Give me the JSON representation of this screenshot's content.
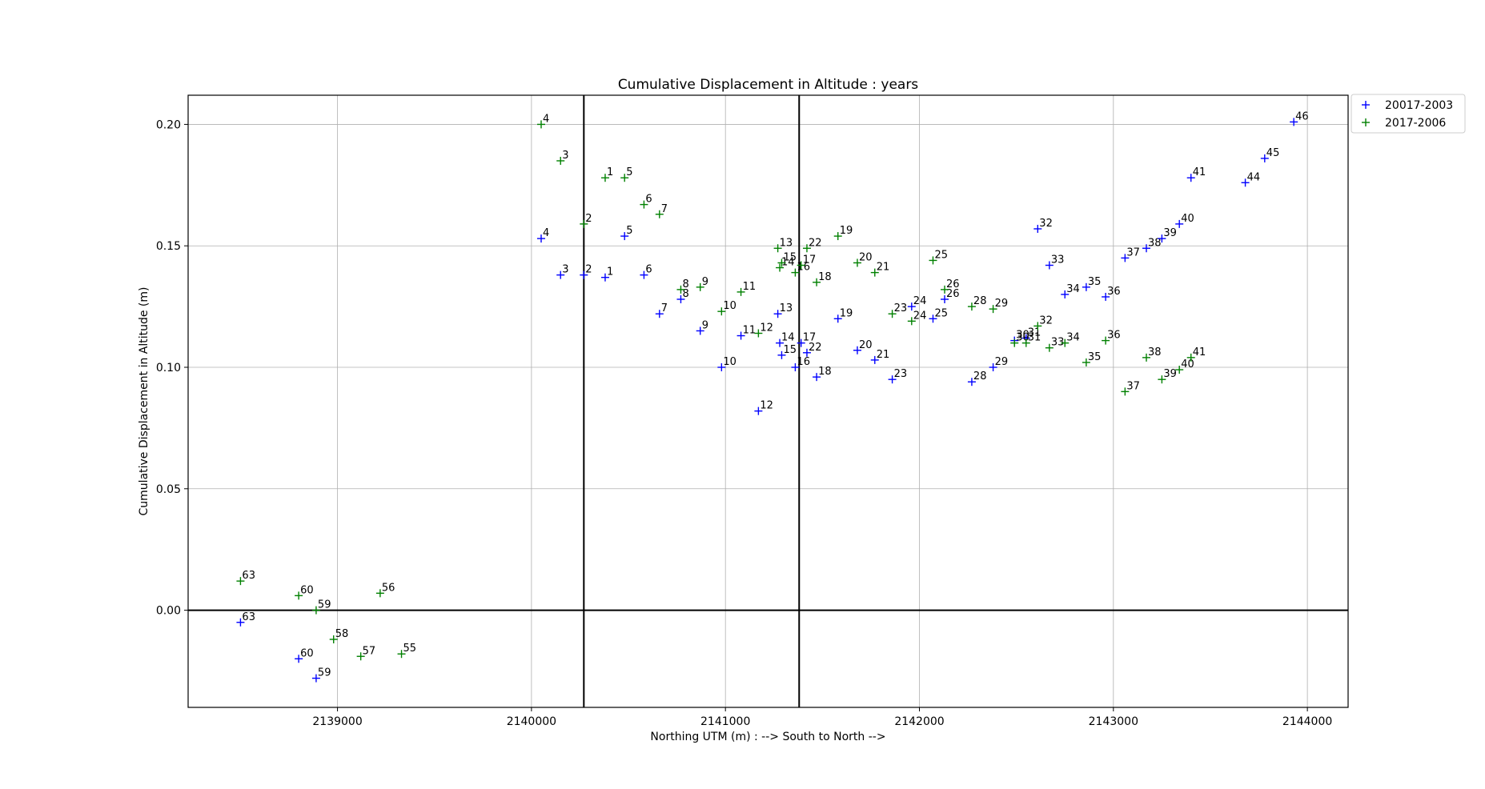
{
  "chart_data": {
    "type": "scatter",
    "title": "Cumulative Displacement in Altitude : years",
    "xlabel": "Northing UTM (m) : --> South to North -->",
    "ylabel": "Cumulative Displacement in Altitude (m)",
    "xlim": [
      2138230,
      2144210
    ],
    "ylim": [
      -0.04,
      0.212
    ],
    "xticks": [
      2139000,
      2140000,
      2141000,
      2142000,
      2143000,
      2144000
    ],
    "xtick_labels": [
      "2139000",
      "2140000",
      "2141000",
      "2142000",
      "2143000",
      "2144000"
    ],
    "yticks": [
      0.0,
      0.05,
      0.1,
      0.15,
      0.2
    ],
    "ytick_labels": [
      "0.00",
      "0.05",
      "0.10",
      "0.15",
      "0.20"
    ],
    "grid": true,
    "legend_position": "top-right-outside",
    "reference_lines": {
      "horizontal_y": [
        0.0
      ],
      "vertical_x": [
        2140270,
        2141380
      ]
    },
    "series": [
      {
        "name": "20017-2003",
        "color": "#0000ff",
        "marker": "+",
        "points": [
          {
            "label": "63",
            "x": 2138500,
            "y": -0.005
          },
          {
            "label": "60",
            "x": 2138800,
            "y": -0.02
          },
          {
            "label": "59",
            "x": 2138890,
            "y": -0.028
          },
          {
            "label": "4",
            "x": 2140050,
            "y": 0.153
          },
          {
            "label": "3",
            "x": 2140150,
            "y": 0.138
          },
          {
            "label": "2",
            "x": 2140270,
            "y": 0.138
          },
          {
            "label": "1",
            "x": 2140380,
            "y": 0.137
          },
          {
            "label": "5",
            "x": 2140480,
            "y": 0.154
          },
          {
            "label": "6",
            "x": 2140580,
            "y": 0.138
          },
          {
            "label": "7",
            "x": 2140660,
            "y": 0.122
          },
          {
            "label": "8",
            "x": 2140770,
            "y": 0.128
          },
          {
            "label": "9",
            "x": 2140870,
            "y": 0.115
          },
          {
            "label": "10",
            "x": 2140980,
            "y": 0.1
          },
          {
            "label": "11",
            "x": 2141080,
            "y": 0.113
          },
          {
            "label": "12",
            "x": 2141170,
            "y": 0.082
          },
          {
            "label": "13",
            "x": 2141270,
            "y": 0.122
          },
          {
            "label": "14",
            "x": 2141280,
            "y": 0.11
          },
          {
            "label": "15",
            "x": 2141290,
            "y": 0.105
          },
          {
            "label": "16",
            "x": 2141360,
            "y": 0.1
          },
          {
            "label": "17",
            "x": 2141390,
            "y": 0.11
          },
          {
            "label": "22",
            "x": 2141420,
            "y": 0.106
          },
          {
            "label": "18",
            "x": 2141470,
            "y": 0.096
          },
          {
            "label": "19",
            "x": 2141580,
            "y": 0.12
          },
          {
            "label": "20",
            "x": 2141680,
            "y": 0.107
          },
          {
            "label": "21",
            "x": 2141770,
            "y": 0.103
          },
          {
            "label": "23",
            "x": 2141860,
            "y": 0.095
          },
          {
            "label": "24",
            "x": 2141960,
            "y": 0.125
          },
          {
            "label": "25",
            "x": 2142070,
            "y": 0.12
          },
          {
            "label": "26",
            "x": 2142130,
            "y": 0.128
          },
          {
            "label": "28",
            "x": 2142270,
            "y": 0.094
          },
          {
            "label": "29",
            "x": 2142380,
            "y": 0.1
          },
          {
            "label": "30",
            "x": 2142490,
            "y": 0.111
          },
          {
            "label": "31",
            "x": 2142550,
            "y": 0.112
          },
          {
            "label": "32",
            "x": 2142610,
            "y": 0.157
          },
          {
            "label": "33",
            "x": 2142670,
            "y": 0.142
          },
          {
            "label": "34",
            "x": 2142750,
            "y": 0.13
          },
          {
            "label": "35",
            "x": 2142860,
            "y": 0.133
          },
          {
            "label": "36",
            "x": 2142960,
            "y": 0.129
          },
          {
            "label": "37",
            "x": 2143060,
            "y": 0.145
          },
          {
            "label": "38",
            "x": 2143170,
            "y": 0.149
          },
          {
            "label": "39",
            "x": 2143250,
            "y": 0.153
          },
          {
            "label": "40",
            "x": 2143340,
            "y": 0.159
          },
          {
            "label": "41",
            "x": 2143400,
            "y": 0.178
          },
          {
            "label": "44",
            "x": 2143680,
            "y": 0.176
          },
          {
            "label": "45",
            "x": 2143780,
            "y": 0.186
          },
          {
            "label": "46",
            "x": 2143930,
            "y": 0.201
          }
        ]
      },
      {
        "name": "2017-2006",
        "color": "#008000",
        "marker": "+",
        "points": [
          {
            "label": "63",
            "x": 2138500,
            "y": 0.012
          },
          {
            "label": "60",
            "x": 2138800,
            "y": 0.006
          },
          {
            "label": "59",
            "x": 2138890,
            "y": 0.0
          },
          {
            "label": "56",
            "x": 2139220,
            "y": 0.007
          },
          {
            "label": "58",
            "x": 2138980,
            "y": -0.012
          },
          {
            "label": "57",
            "x": 2139120,
            "y": -0.019
          },
          {
            "label": "55",
            "x": 2139330,
            "y": -0.018
          },
          {
            "label": "4",
            "x": 2140050,
            "y": 0.2
          },
          {
            "label": "3",
            "x": 2140150,
            "y": 0.185
          },
          {
            "label": "1",
            "x": 2140380,
            "y": 0.178
          },
          {
            "label": "5",
            "x": 2140480,
            "y": 0.178
          },
          {
            "label": "2",
            "x": 2140270,
            "y": 0.159
          },
          {
            "label": "6",
            "x": 2140580,
            "y": 0.167
          },
          {
            "label": "7",
            "x": 2140660,
            "y": 0.163
          },
          {
            "label": "8",
            "x": 2140770,
            "y": 0.132
          },
          {
            "label": "9",
            "x": 2140870,
            "y": 0.133
          },
          {
            "label": "10",
            "x": 2140980,
            "y": 0.123
          },
          {
            "label": "11",
            "x": 2141080,
            "y": 0.131
          },
          {
            "label": "12",
            "x": 2141170,
            "y": 0.114
          },
          {
            "label": "13",
            "x": 2141270,
            "y": 0.149
          },
          {
            "label": "14",
            "x": 2141280,
            "y": 0.141
          },
          {
            "label": "15",
            "x": 2141290,
            "y": 0.143
          },
          {
            "label": "16",
            "x": 2141360,
            "y": 0.139
          },
          {
            "label": "17",
            "x": 2141390,
            "y": 0.142
          },
          {
            "label": "22",
            "x": 2141420,
            "y": 0.149
          },
          {
            "label": "18",
            "x": 2141470,
            "y": 0.135
          },
          {
            "label": "19",
            "x": 2141580,
            "y": 0.154
          },
          {
            "label": "20",
            "x": 2141680,
            "y": 0.143
          },
          {
            "label": "21",
            "x": 2141770,
            "y": 0.139
          },
          {
            "label": "23",
            "x": 2141860,
            "y": 0.122
          },
          {
            "label": "24",
            "x": 2141960,
            "y": 0.119
          },
          {
            "label": "25",
            "x": 2142070,
            "y": 0.144
          },
          {
            "label": "26",
            "x": 2142130,
            "y": 0.132
          },
          {
            "label": "28",
            "x": 2142270,
            "y": 0.125
          },
          {
            "label": "29",
            "x": 2142380,
            "y": 0.124
          },
          {
            "label": "30",
            "x": 2142490,
            "y": 0.11
          },
          {
            "label": "31",
            "x": 2142550,
            "y": 0.11
          },
          {
            "label": "32",
            "x": 2142610,
            "y": 0.117
          },
          {
            "label": "33",
            "x": 2142670,
            "y": 0.108
          },
          {
            "label": "34",
            "x": 2142750,
            "y": 0.11
          },
          {
            "label": "35",
            "x": 2142860,
            "y": 0.102
          },
          {
            "label": "36",
            "x": 2142960,
            "y": 0.111
          },
          {
            "label": "37",
            "x": 2143060,
            "y": 0.09
          },
          {
            "label": "38",
            "x": 2143170,
            "y": 0.104
          },
          {
            "label": "39",
            "x": 2143250,
            "y": 0.095
          },
          {
            "label": "40",
            "x": 2143340,
            "y": 0.099
          },
          {
            "label": "41",
            "x": 2143400,
            "y": 0.104
          }
        ]
      }
    ]
  }
}
